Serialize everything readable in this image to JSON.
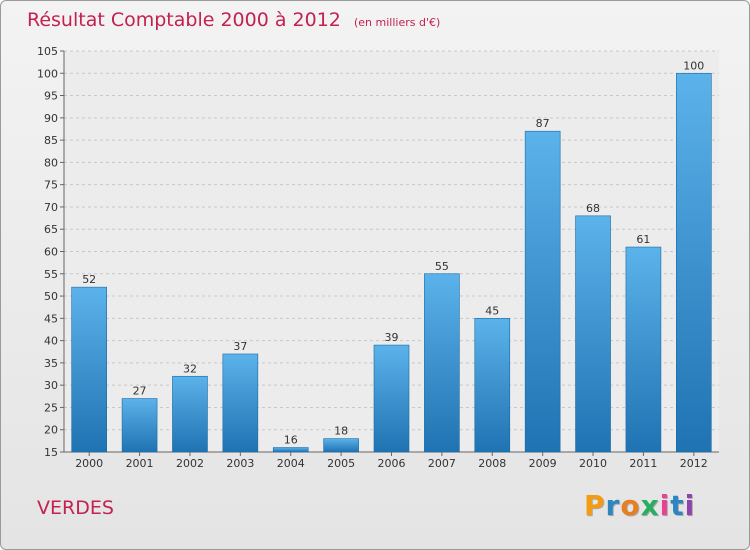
{
  "chart_data": {
    "type": "bar",
    "title": "Résultat Comptable 2000 à 2012",
    "subtitle": "(en milliers d'€)",
    "categories": [
      "2000",
      "2001",
      "2002",
      "2003",
      "2004",
      "2005",
      "2006",
      "2007",
      "2008",
      "2009",
      "2010",
      "2011",
      "2012"
    ],
    "values": [
      52,
      27,
      32,
      37,
      16,
      18,
      39,
      55,
      45,
      87,
      68,
      61,
      100
    ],
    "ylim": [
      15,
      105
    ],
    "ytick_step": 5,
    "grid": true,
    "xlabel": "",
    "ylabel": ""
  },
  "place_name": "VERDES",
  "logo": {
    "letters": [
      "P",
      "r",
      "o",
      "x",
      "i",
      "t",
      "i"
    ],
    "colors": [
      "#f39c12",
      "#2e86c1",
      "#e67e22",
      "#27ae60",
      "#e84393",
      "#2e86c1",
      "#8e44ad"
    ]
  },
  "colors": {
    "title": "#c3214f",
    "bar_top": "#5cb2ea",
    "bar_bottom": "#1f73b2"
  }
}
